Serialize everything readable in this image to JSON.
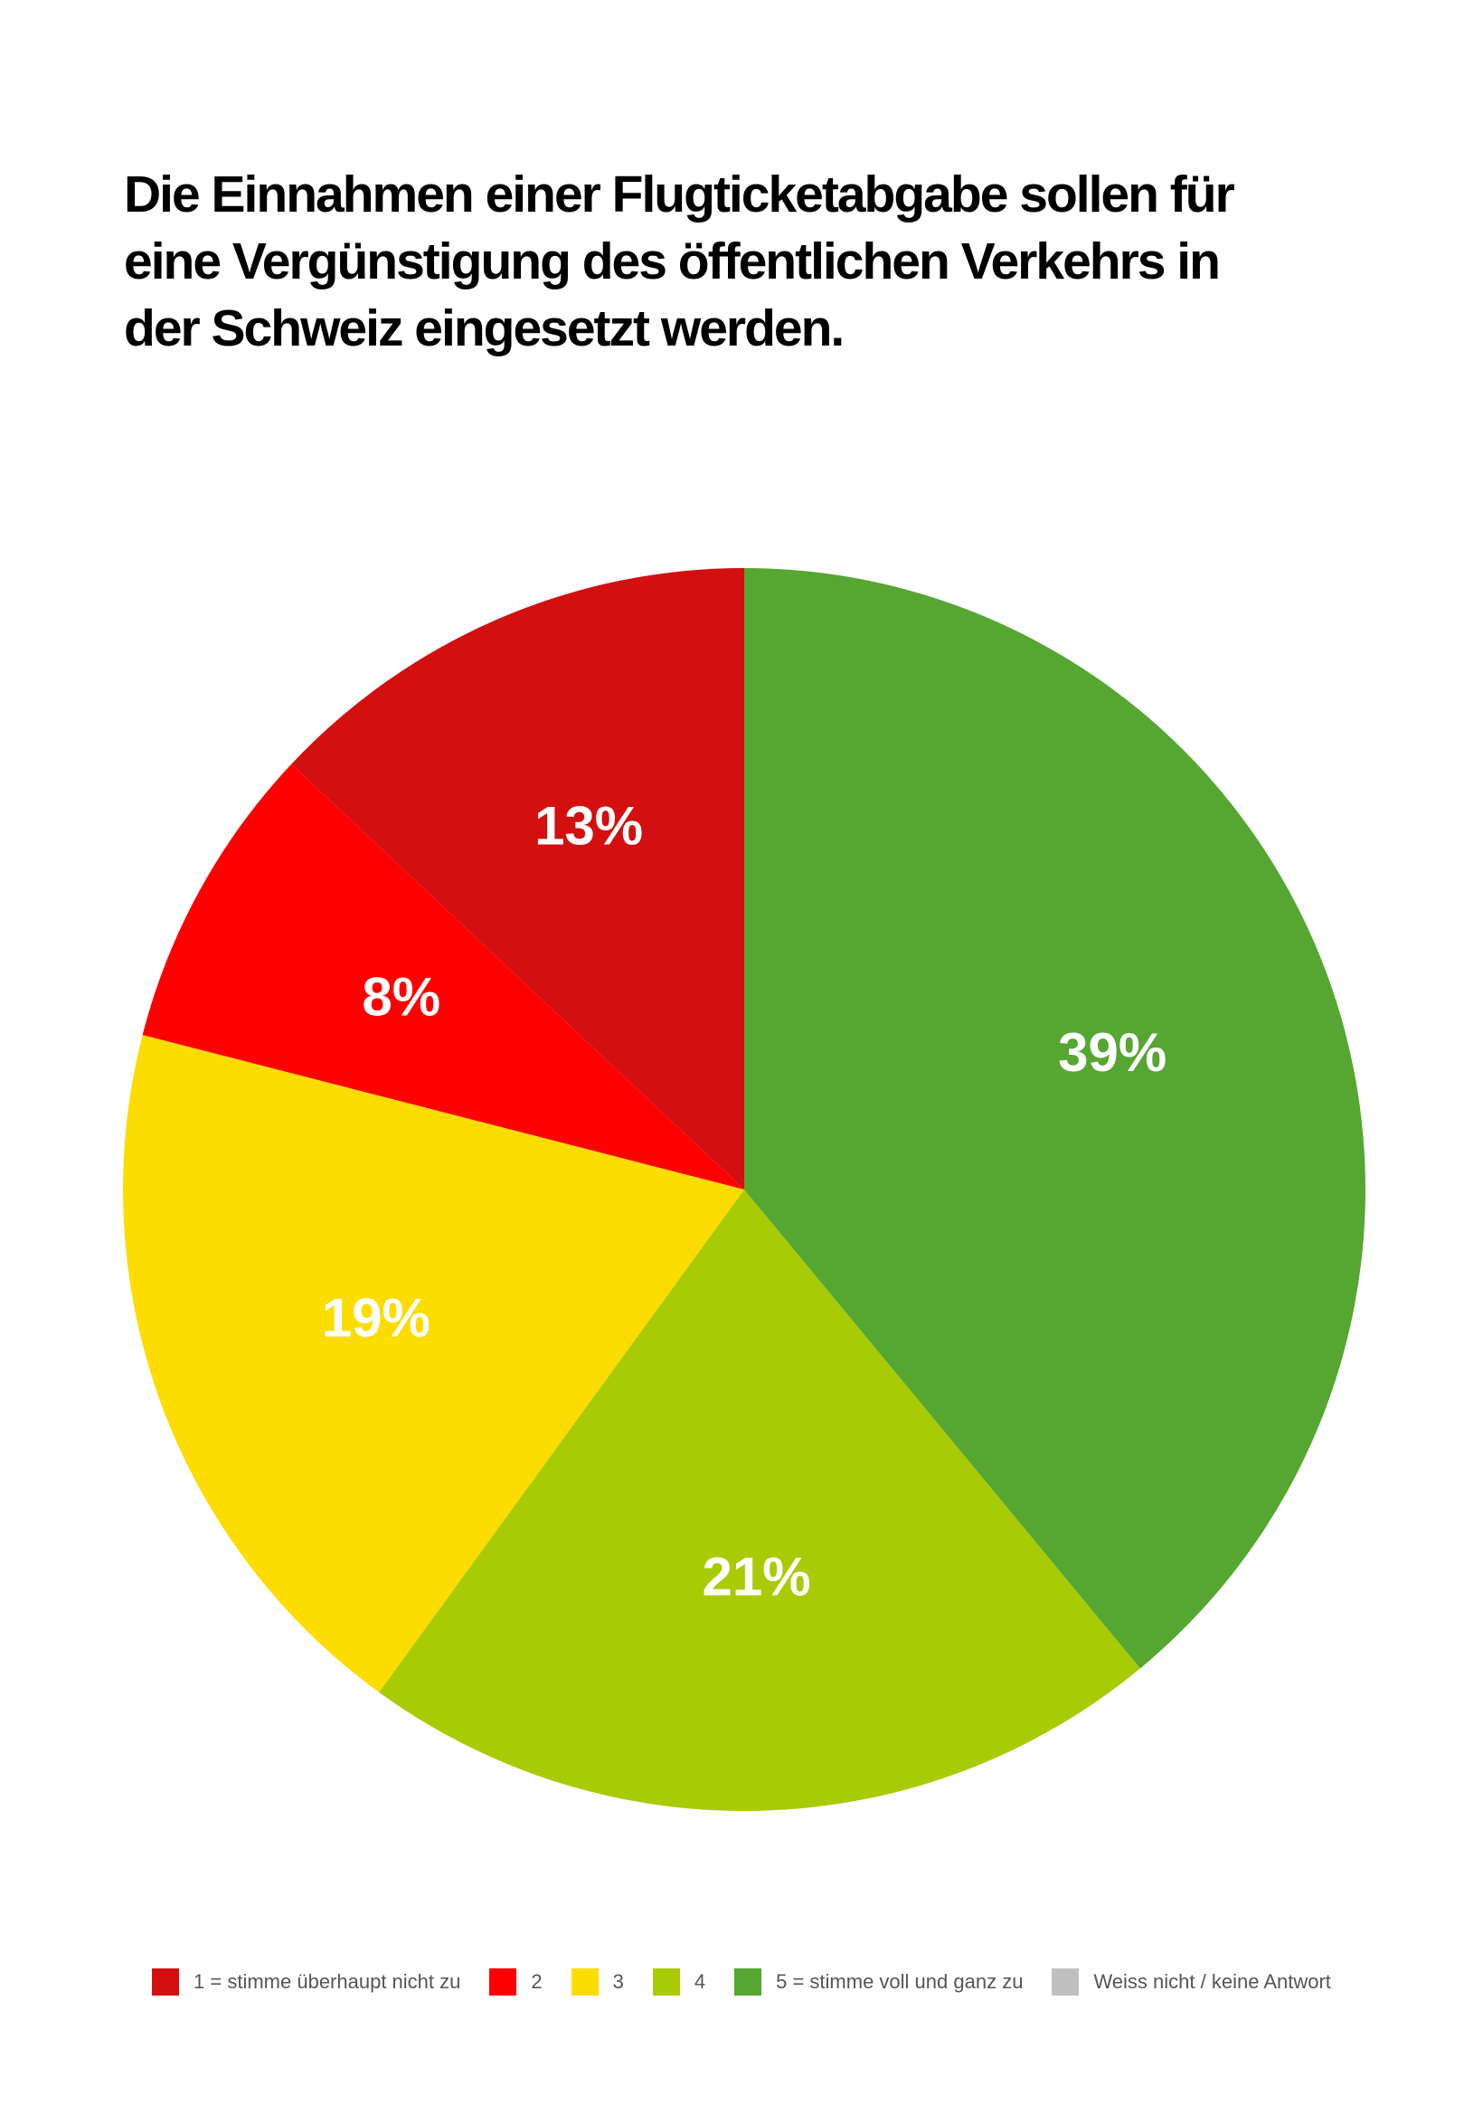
{
  "chart_data": {
    "type": "pie",
    "title": "Die Einnahmen einer Flugticketabgabe sollen für eine Vergünstigung des öffentlichen Verkehrs in der Schweiz eingesetzt werden.",
    "categories": [
      "1 = stimme überhaupt nicht zu",
      "2",
      "3",
      "4",
      "5 = stimme voll und ganz zu",
      "Weiss nicht / keine Antwort"
    ],
    "values": [
      13,
      8,
      19,
      21,
      39,
      0
    ],
    "value_labels": [
      "13%",
      "8%",
      "19%",
      "21%",
      "39%",
      null
    ],
    "colors": [
      "#d30f0f",
      "#ff0000",
      "#fddc00",
      "#a9cb05",
      "#56a632",
      "#c0c0c0"
    ],
    "direction": "counterclockwise",
    "legend": "bottom"
  }
}
